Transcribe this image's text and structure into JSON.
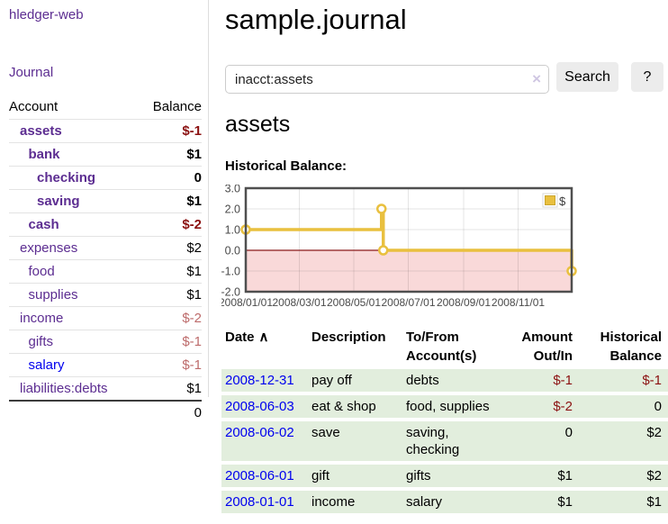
{
  "app": {
    "brand": "hledger-web",
    "nav_journal": "Journal"
  },
  "colors": {
    "accent_purple": "#5c2d91",
    "link_blue": "#0000ee",
    "neg_strong": "#8b1111",
    "neg_soft": "#bd6b6b",
    "row_green": "#e2eedd",
    "series_yellow": "#e9c03f",
    "zero_line": "#8b1a1a",
    "negative_region": "#f9d9d9"
  },
  "sidebar": {
    "col_account": "Account",
    "col_balance": "Balance",
    "accounts": [
      {
        "name": "assets",
        "depth": 1,
        "bold": true,
        "balance": "$-1",
        "neg": "strong",
        "link": "purple"
      },
      {
        "name": "bank",
        "depth": 2,
        "bold": true,
        "balance": "$1",
        "neg": "none",
        "link": "purple"
      },
      {
        "name": "checking",
        "depth": 3,
        "bold": true,
        "balance": "0",
        "neg": "none",
        "link": "purple"
      },
      {
        "name": "saving",
        "depth": 3,
        "bold": true,
        "balance": "$1",
        "neg": "none",
        "link": "purple"
      },
      {
        "name": "cash",
        "depth": 2,
        "bold": true,
        "balance": "$-2",
        "neg": "strong",
        "link": "purple"
      },
      {
        "name": "expenses",
        "depth": 1,
        "bold": false,
        "balance": "$2",
        "neg": "none",
        "link": "purple"
      },
      {
        "name": "food",
        "depth": 2,
        "bold": false,
        "balance": "$1",
        "neg": "none",
        "link": "purple"
      },
      {
        "name": "supplies",
        "depth": 2,
        "bold": false,
        "balance": "$1",
        "neg": "none",
        "link": "purple"
      },
      {
        "name": "income",
        "depth": 1,
        "bold": false,
        "balance": "$-2",
        "neg": "soft",
        "link": "purple"
      },
      {
        "name": "gifts",
        "depth": 2,
        "bold": false,
        "balance": "$-1",
        "neg": "soft",
        "link": "purple"
      },
      {
        "name": "salary",
        "depth": 2,
        "bold": false,
        "balance": "$-1",
        "neg": "soft",
        "link": "blue"
      },
      {
        "name": "liabilities:debts",
        "depth": 1,
        "bold": false,
        "balance": "$1",
        "neg": "none",
        "link": "purple"
      }
    ],
    "total": "0"
  },
  "header": {
    "title": "sample.journal"
  },
  "search": {
    "value": "inacct:assets",
    "clear_icon": "×",
    "button": "Search",
    "help": "?"
  },
  "account_page": {
    "title": "assets",
    "chart_label": "Historical Balance:"
  },
  "chart_data": {
    "type": "line",
    "step": true,
    "title": "Historical Balance:",
    "legend": "$",
    "legend_position": "top-right",
    "grid": true,
    "xlim": [
      "2008-01-01",
      "2008-12-31"
    ],
    "ylim": [
      -2,
      3
    ],
    "y_ticks": [
      3.0,
      2.0,
      1.0,
      0.0,
      -1.0,
      -2.0
    ],
    "x_ticks": [
      "2008/01/01",
      "2008/03/01",
      "2008/05/01",
      "2008/07/01",
      "2008/09/01",
      "2008/11/01"
    ],
    "series": [
      {
        "name": "$",
        "x": [
          "2008-01-01",
          "2008-06-01",
          "2008-06-03",
          "2008-12-31"
        ],
        "y": [
          1,
          2,
          0,
          -1
        ]
      }
    ]
  },
  "register": {
    "columns": [
      "Date",
      "Description",
      "To/From Account(s)",
      "Amount Out/In",
      "Historical Balance"
    ],
    "sort_icon": "∧",
    "rows": [
      {
        "date": "2008-12-31",
        "description": "pay off",
        "accounts": "debts",
        "amount": "$-1",
        "amount_neg": true,
        "balance": "$-1",
        "balance_neg": true
      },
      {
        "date": "2008-06-03",
        "description": "eat & shop",
        "accounts": "food, supplies",
        "amount": "$-2",
        "amount_neg": true,
        "balance": "0",
        "balance_neg": false
      },
      {
        "date": "2008-06-02",
        "description": "save",
        "accounts": "saving, checking",
        "amount": "0",
        "amount_neg": false,
        "balance": "$2",
        "balance_neg": false
      },
      {
        "date": "2008-06-01",
        "description": "gift",
        "accounts": "gifts",
        "amount": "$1",
        "amount_neg": false,
        "balance": "$2",
        "balance_neg": false
      },
      {
        "date": "2008-01-01",
        "description": "income",
        "accounts": "salary",
        "amount": "$1",
        "amount_neg": false,
        "balance": "$1",
        "balance_neg": false
      }
    ]
  }
}
